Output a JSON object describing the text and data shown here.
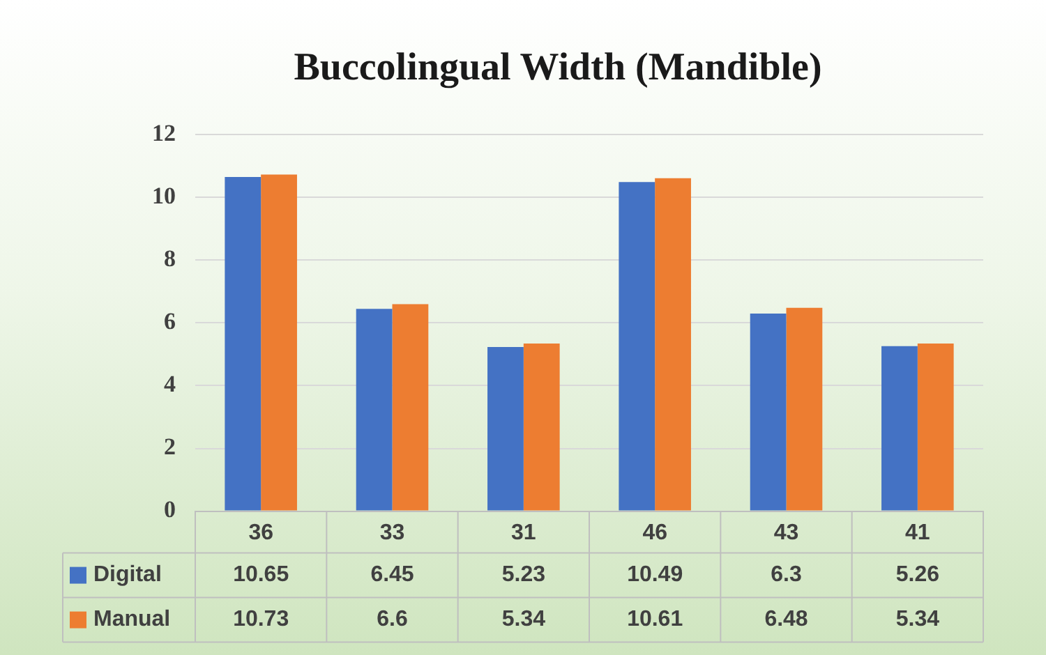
{
  "chart_data": {
    "type": "bar",
    "title": "Buccolingual Width (Mandible)",
    "categories": [
      "36",
      "33",
      "31",
      "46",
      "43",
      "41"
    ],
    "series": [
      {
        "name": "Digital",
        "color": "#4472c4",
        "values": [
          10.65,
          6.45,
          5.23,
          10.49,
          6.3,
          5.26
        ]
      },
      {
        "name": "Manual",
        "color": "#ed7d31",
        "values": [
          10.73,
          6.6,
          5.34,
          10.61,
          6.48,
          5.34
        ]
      }
    ],
    "ylim": [
      0,
      12
    ],
    "yticks": [
      0,
      2,
      4,
      6,
      8,
      10,
      12
    ],
    "grid": "y",
    "legend": "bottom",
    "data_labels": true
  }
}
